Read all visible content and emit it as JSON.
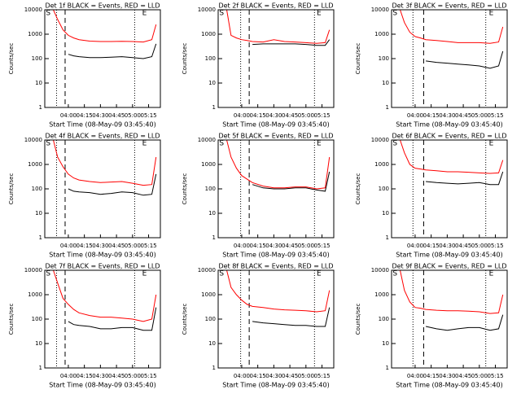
{
  "chart_data": [
    {
      "type": "line",
      "title": "Det 1f BLACK = Events, RED = LLD",
      "xlabel": "Start Time (08-May-09 03:45:40)",
      "ylabel": "Counts/sec",
      "log_y": true,
      "x": [
        "03:46",
        "03:50",
        "03:55",
        "04:00",
        "04:05",
        "04:10",
        "04:20",
        "04:30",
        "04:40",
        "04:50",
        "05:00",
        "05:10",
        "05:18",
        "05:22"
      ],
      "xlim": [
        "03:38",
        "05:26"
      ],
      "xticks": [
        "04:00",
        "04:15",
        "04:30",
        "04:45",
        "05:00",
        "05:15"
      ],
      "ylim": [
        1,
        10000
      ],
      "yticks": [
        1,
        10,
        100,
        1000,
        10000
      ],
      "series": [
        {
          "name": "Events",
          "color": "#000000",
          "values": [
            null,
            null,
            null,
            150,
            130,
            120,
            110,
            110,
            115,
            120,
            110,
            100,
            120,
            400
          ]
        },
        {
          "name": "LLD",
          "color": "#ff0000",
          "values": [
            10000,
            4000,
            1500,
            900,
            700,
            600,
            520,
            500,
            500,
            510,
            500,
            480,
            600,
            2500
          ]
        }
      ],
      "vlines": [
        {
          "x": "03:49",
          "style": "dotted"
        },
        {
          "x": "03:57",
          "style": "dashed"
        },
        {
          "x": "05:02",
          "style": "dotted"
        }
      ],
      "annotations": [
        {
          "text": "S",
          "x": "03:39"
        },
        {
          "text": "E",
          "x": "05:09"
        }
      ]
    },
    {
      "type": "line",
      "title": "Det 2f BLACK = Events, RED = LLD",
      "xlabel": "Start Time (08-May-09 03:45:40)",
      "ylabel": "Counts/sec",
      "log_y": true,
      "x": [
        "03:46",
        "03:50",
        "03:55",
        "04:00",
        "04:05",
        "04:10",
        "04:20",
        "04:30",
        "04:40",
        "04:50",
        "05:00",
        "05:10",
        "05:18",
        "05:22"
      ],
      "xlim": [
        "03:38",
        "05:26"
      ],
      "xticks": [
        "04:00",
        "04:15",
        "04:30",
        "04:45",
        "05:00",
        "05:15"
      ],
      "ylim": [
        1,
        10000
      ],
      "yticks": [
        1,
        10,
        100,
        1000,
        10000
      ],
      "series": [
        {
          "name": "Events",
          "color": "#000000",
          "values": [
            null,
            null,
            null,
            null,
            null,
            380,
            400,
            400,
            400,
            400,
            380,
            350,
            350,
            600
          ]
        },
        {
          "name": "LLD",
          "color": "#ff0000",
          "values": [
            10000,
            900,
            700,
            600,
            550,
            500,
            480,
            600,
            500,
            480,
            450,
            420,
            450,
            1500
          ]
        }
      ],
      "vlines": [
        {
          "x": "03:59",
          "style": "dotted"
        },
        {
          "x": "04:07",
          "style": "dashed"
        },
        {
          "x": "05:08",
          "style": "dotted"
        }
      ],
      "annotations": [
        {
          "text": "S",
          "x": "03:39"
        },
        {
          "text": "E",
          "x": "05:10"
        }
      ]
    },
    {
      "type": "line",
      "title": "Det 3f BLACK = Events, RED = LLD",
      "xlabel": "Start Time (08-May-09 03:45:40)",
      "ylabel": "Counts/sec",
      "log_y": true,
      "x": [
        "03:46",
        "03:50",
        "03:55",
        "04:00",
        "04:05",
        "04:10",
        "04:20",
        "04:30",
        "04:40",
        "04:50",
        "05:00",
        "05:10",
        "05:18",
        "05:22"
      ],
      "xlim": [
        "03:38",
        "05:26"
      ],
      "xticks": [
        "04:00",
        "04:15",
        "04:30",
        "04:45",
        "05:00",
        "05:15"
      ],
      "ylim": [
        1,
        10000
      ],
      "yticks": [
        1,
        10,
        100,
        1000,
        10000
      ],
      "series": [
        {
          "name": "Events",
          "color": "#000000",
          "values": [
            null,
            null,
            null,
            null,
            null,
            80,
            70,
            65,
            60,
            55,
            50,
            40,
            50,
            200
          ]
        },
        {
          "name": "LLD",
          "color": "#ff0000",
          "values": [
            10000,
            3000,
            1200,
            800,
            700,
            600,
            550,
            500,
            450,
            450,
            450,
            420,
            480,
            2000
          ]
        }
      ],
      "vlines": [
        {
          "x": "03:58",
          "style": "dotted"
        },
        {
          "x": "04:08",
          "style": "dashed"
        },
        {
          "x": "05:06",
          "style": "dotted"
        }
      ],
      "annotations": [
        {
          "text": "S",
          "x": "03:39"
        },
        {
          "text": "E",
          "x": "05:09"
        }
      ]
    },
    {
      "type": "line",
      "title": "Det 4f BLACK = Events, RED = LLD",
      "xlabel": "Start Time (08-May-09 03:45:40)",
      "ylabel": "Counts/sec",
      "log_y": true,
      "x": [
        "03:46",
        "03:50",
        "03:55",
        "04:00",
        "04:05",
        "04:10",
        "04:20",
        "04:30",
        "04:40",
        "04:50",
        "05:00",
        "05:10",
        "05:18",
        "05:22"
      ],
      "xlim": [
        "03:38",
        "05:26"
      ],
      "xticks": [
        "04:00",
        "04:15",
        "04:30",
        "04:45",
        "05:00",
        "05:15"
      ],
      "ylim": [
        1,
        10000
      ],
      "yticks": [
        1,
        10,
        100,
        1000,
        10000
      ],
      "series": [
        {
          "name": "Events",
          "color": "#000000",
          "values": [
            null,
            null,
            null,
            100,
            80,
            75,
            70,
            60,
            65,
            75,
            70,
            55,
            60,
            400
          ]
        },
        {
          "name": "LLD",
          "color": "#ff0000",
          "values": [
            10000,
            2000,
            800,
            400,
            280,
            230,
            200,
            180,
            190,
            200,
            170,
            140,
            150,
            2000
          ]
        }
      ],
      "vlines": [
        {
          "x": "03:49",
          "style": "dotted"
        },
        {
          "x": "03:57",
          "style": "dashed"
        },
        {
          "x": "05:02",
          "style": "dotted"
        }
      ],
      "annotations": [
        {
          "text": "S",
          "x": "03:39"
        },
        {
          "text": "E",
          "x": "05:09"
        }
      ]
    },
    {
      "type": "line",
      "title": "Det 5f BLACK = Events, RED = LLD",
      "xlabel": "Start Time (08-May-09 03:45:40)",
      "ylabel": "Counts/sec",
      "log_y": true,
      "x": [
        "03:46",
        "03:50",
        "03:55",
        "04:00",
        "04:05",
        "04:10",
        "04:20",
        "04:30",
        "04:40",
        "04:50",
        "05:00",
        "05:10",
        "05:18",
        "05:22"
      ],
      "xlim": [
        "03:38",
        "05:26"
      ],
      "xticks": [
        "04:00",
        "04:15",
        "04:30",
        "04:45",
        "05:00",
        "05:15"
      ],
      "ylim": [
        1,
        10000
      ],
      "yticks": [
        1,
        10,
        100,
        1000,
        10000
      ],
      "series": [
        {
          "name": "Events",
          "color": "#000000",
          "values": [
            null,
            null,
            null,
            null,
            null,
            150,
            110,
            100,
            100,
            110,
            110,
            90,
            80,
            500
          ]
        },
        {
          "name": "LLD",
          "color": "#ff0000",
          "values": [
            10000,
            2000,
            700,
            350,
            250,
            180,
            130,
            110,
            110,
            120,
            120,
            100,
            110,
            2000
          ]
        }
      ],
      "vlines": [
        {
          "x": "03:59",
          "style": "dotted"
        },
        {
          "x": "04:07",
          "style": "dashed"
        },
        {
          "x": "05:08",
          "style": "dotted"
        }
      ],
      "annotations": [
        {
          "text": "S",
          "x": "03:39"
        },
        {
          "text": "E",
          "x": "05:10"
        }
      ]
    },
    {
      "type": "line",
      "title": "Det 6f BLACK = Events, RED = LLD",
      "xlabel": "Start Time (08-May-09 03:45:40)",
      "ylabel": "Counts/sec",
      "log_y": true,
      "x": [
        "03:46",
        "03:50",
        "03:55",
        "04:00",
        "04:05",
        "04:10",
        "04:20",
        "04:30",
        "04:40",
        "04:50",
        "05:00",
        "05:10",
        "05:18",
        "05:22"
      ],
      "xlim": [
        "03:38",
        "05:26"
      ],
      "xticks": [
        "04:00",
        "04:15",
        "04:30",
        "04:45",
        "05:00",
        "05:15"
      ],
      "ylim": [
        1,
        10000
      ],
      "yticks": [
        1,
        10,
        100,
        1000,
        10000
      ],
      "series": [
        {
          "name": "Events",
          "color": "#000000",
          "values": [
            null,
            null,
            null,
            null,
            null,
            200,
            180,
            170,
            160,
            170,
            180,
            150,
            150,
            500
          ]
        },
        {
          "name": "LLD",
          "color": "#ff0000",
          "values": [
            10000,
            3000,
            1000,
            700,
            650,
            600,
            550,
            500,
            500,
            480,
            450,
            430,
            450,
            1500
          ]
        }
      ],
      "vlines": [
        {
          "x": "03:58",
          "style": "dotted"
        },
        {
          "x": "04:08",
          "style": "dashed"
        },
        {
          "x": "05:06",
          "style": "dotted"
        }
      ],
      "annotations": [
        {
          "text": "S",
          "x": "03:39"
        },
        {
          "text": "E",
          "x": "05:09"
        }
      ]
    },
    {
      "type": "line",
      "title": "Det 7f BLACK = Events, RED = LLD",
      "xlabel": "Start Time (08-May-09 03:45:40)",
      "ylabel": "Counts/sec",
      "log_y": true,
      "x": [
        "03:46",
        "03:50",
        "03:55",
        "04:00",
        "04:05",
        "04:10",
        "04:20",
        "04:30",
        "04:40",
        "04:50",
        "05:00",
        "05:10",
        "05:18",
        "05:22"
      ],
      "xlim": [
        "03:38",
        "05:26"
      ],
      "xticks": [
        "04:00",
        "04:15",
        "04:30",
        "04:45",
        "05:00",
        "05:15"
      ],
      "ylim": [
        1,
        10000
      ],
      "yticks": [
        1,
        10,
        100,
        1000,
        10000
      ],
      "series": [
        {
          "name": "Events",
          "color": "#000000",
          "values": [
            null,
            null,
            null,
            80,
            60,
            55,
            50,
            40,
            40,
            45,
            45,
            35,
            35,
            300
          ]
        },
        {
          "name": "LLD",
          "color": "#ff0000",
          "values": [
            10000,
            3000,
            700,
            400,
            250,
            180,
            140,
            120,
            120,
            110,
            100,
            80,
            100,
            1000
          ]
        }
      ],
      "vlines": [
        {
          "x": "03:49",
          "style": "dotted"
        },
        {
          "x": "03:57",
          "style": "dashed"
        },
        {
          "x": "05:02",
          "style": "dotted"
        }
      ],
      "annotations": [
        {
          "text": "S",
          "x": "03:39"
        },
        {
          "text": "E",
          "x": "05:09"
        }
      ]
    },
    {
      "type": "line",
      "title": "Det 8f BLACK = Events, RED = LLD",
      "xlabel": "Start Time (08-May-09 03:45:40)",
      "ylabel": "Counts/sec",
      "log_y": true,
      "x": [
        "03:46",
        "03:50",
        "03:55",
        "04:00",
        "04:05",
        "04:10",
        "04:20",
        "04:30",
        "04:40",
        "04:50",
        "05:00",
        "05:10",
        "05:18",
        "05:22"
      ],
      "xlim": [
        "03:38",
        "05:26"
      ],
      "xticks": [
        "04:00",
        "04:15",
        "04:30",
        "04:45",
        "05:00",
        "05:15"
      ],
      "ylim": [
        1,
        10000
      ],
      "yticks": [
        1,
        10,
        100,
        1000,
        10000
      ],
      "series": [
        {
          "name": "Events",
          "color": "#000000",
          "values": [
            null,
            null,
            null,
            null,
            null,
            80,
            70,
            65,
            60,
            55,
            55,
            50,
            50,
            300
          ]
        },
        {
          "name": "LLD",
          "color": "#ff0000",
          "values": [
            10000,
            2000,
            1000,
            600,
            400,
            330,
            300,
            260,
            240,
            230,
            220,
            200,
            220,
            1500
          ]
        }
      ],
      "vlines": [
        {
          "x": "03:59",
          "style": "dotted"
        },
        {
          "x": "04:07",
          "style": "dashed"
        },
        {
          "x": "05:08",
          "style": "dotted"
        }
      ],
      "annotations": [
        {
          "text": "S",
          "x": "03:39"
        },
        {
          "text": "E",
          "x": "05:10"
        }
      ]
    },
    {
      "type": "line",
      "title": "Det 9f BLACK = Events, RED = LLD",
      "xlabel": "Start Time (08-May-09 03:45:40)",
      "ylabel": "Counts/sec",
      "log_y": true,
      "x": [
        "03:46",
        "03:50",
        "03:55",
        "04:00",
        "04:05",
        "04:10",
        "04:20",
        "04:30",
        "04:40",
        "04:50",
        "05:00",
        "05:10",
        "05:18",
        "05:22"
      ],
      "xlim": [
        "03:38",
        "05:26"
      ],
      "xticks": [
        "04:00",
        "04:15",
        "04:30",
        "04:45",
        "05:00",
        "05:15"
      ],
      "ylim": [
        1,
        10000
      ],
      "yticks": [
        1,
        10,
        100,
        1000,
        10000
      ],
      "series": [
        {
          "name": "Events",
          "color": "#000000",
          "values": [
            null,
            null,
            null,
            null,
            null,
            50,
            40,
            35,
            40,
            45,
            45,
            35,
            40,
            150
          ]
        },
        {
          "name": "LLD",
          "color": "#ff0000",
          "values": [
            10000,
            1500,
            500,
            300,
            280,
            250,
            230,
            220,
            220,
            210,
            200,
            170,
            180,
            1000
          ]
        }
      ],
      "vlines": [
        {
          "x": "03:58",
          "style": "dotted"
        },
        {
          "x": "04:08",
          "style": "dashed"
        },
        {
          "x": "05:06",
          "style": "dotted"
        }
      ],
      "annotations": [
        {
          "text": "S",
          "x": "03:39"
        },
        {
          "text": "E",
          "x": "05:09"
        }
      ]
    }
  ]
}
